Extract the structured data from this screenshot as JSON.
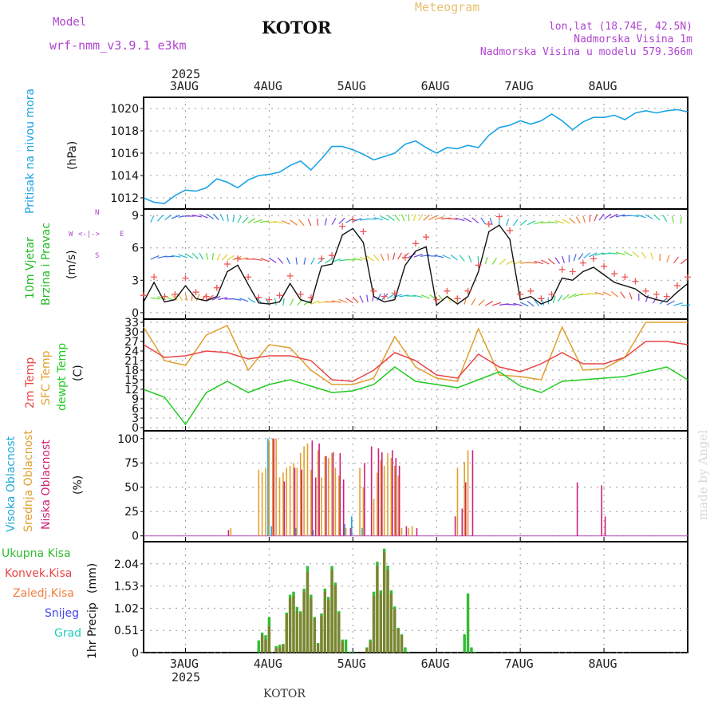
{
  "header": {
    "model_label": "Model",
    "model_name": "wrf-nmm_v3.9.1 e3km",
    "title": "KOTOR",
    "product": "Meteogram",
    "coords": "lon,lat (18.74E, 42.5N)",
    "elevation": "Nadmorska Visina 1m",
    "model_elevation": "Nadmorska Visina u modelu 579.366m",
    "watermark": "made by Angel",
    "footer": "KOTOR"
  },
  "colors": {
    "pressure": "#1aa3e6",
    "wind_label": "#22bb22",
    "wind_axis": "#b044d0",
    "temp2m": "#e84545",
    "sfc": "#e0a030",
    "dewpt": "#22cc22",
    "cloud_high": "#22aadd",
    "cloud_mid": "#e0a030",
    "cloud_low": "#d0207a",
    "precip_total": "#33bb33",
    "precip_conv": "#e84545",
    "precip_frozen": "#f08040",
    "snow": "#4444ee",
    "graupel": "#22ccbb",
    "model": "#b044d0",
    "product": "#e8c070"
  },
  "chart_data": {
    "type": "meteogram",
    "x_dates_top": [
      "3AUG",
      "4AUG",
      "5AUG",
      "6AUG",
      "7AUG",
      "8AUG"
    ],
    "x_dates_bottom": [
      "3AUG",
      "4AUG",
      "5AUG",
      "6AUG",
      "7AUG",
      "8AUG"
    ],
    "year_top": "2025",
    "year_bottom": "2025",
    "x_domain_hours": [
      -12,
      144
    ],
    "panels": [
      {
        "id": "pressure",
        "ylabel": "Pritisak na nivou mora",
        "unit": "(hPa)",
        "ylim": [
          1011,
          1021
        ],
        "yticks": [
          "1012",
          "1014",
          "1016",
          "1018",
          "1020"
        ],
        "series": [
          {
            "name": "MSLP",
            "x": [
              -12,
              -9,
              -6,
              -3,
              0,
              3,
              6,
              9,
              12,
              15,
              18,
              21,
              24,
              27,
              30,
              33,
              36,
              39,
              42,
              45,
              48,
              51,
              54,
              57,
              60,
              63,
              66,
              69,
              72,
              75,
              78,
              81,
              84,
              87,
              90,
              93,
              96,
              99,
              102,
              105,
              108,
              111,
              114,
              117,
              120,
              123,
              126,
              129,
              132,
              135,
              138,
              141,
              144
            ],
            "values": [
              1012.0,
              1011.6,
              1011.5,
              1012.2,
              1012.7,
              1012.6,
              1012.9,
              1013.7,
              1013.4,
              1012.9,
              1013.6,
              1014.0,
              1014.1,
              1014.3,
              1014.9,
              1015.3,
              1014.5,
              1015.5,
              1016.6,
              1016.6,
              1016.3,
              1015.9,
              1015.4,
              1015.7,
              1016.0,
              1016.8,
              1017.1,
              1016.5,
              1016.0,
              1016.5,
              1016.4,
              1016.7,
              1016.5,
              1017.6,
              1018.3,
              1018.5,
              1018.9,
              1018.6,
              1018.9,
              1019.5,
              1018.9,
              1018.1,
              1018.8,
              1019.2,
              1019.2,
              1019.4,
              1019.0,
              1019.6,
              1019.8,
              1019.6,
              1019.8,
              1019.9,
              1019.7
            ]
          }
        ]
      },
      {
        "id": "wind",
        "ylabel_1": "10m Vjetar",
        "ylabel_2": "Brzina i Pravac",
        "unit": "(m/s)",
        "compass": [
          "N",
          "S",
          "W",
          "E"
        ],
        "ylim": [
          -0.6,
          9.6
        ],
        "yticks": [
          "0",
          "3",
          "6",
          "9"
        ],
        "series": [
          {
            "name": "speed",
            "x": [
              -12,
              -9,
              -6,
              -3,
              0,
              3,
              6,
              9,
              12,
              15,
              18,
              21,
              24,
              27,
              30,
              33,
              36,
              39,
              42,
              45,
              48,
              51,
              54,
              57,
              60,
              63,
              66,
              69,
              72,
              75,
              78,
              81,
              84,
              87,
              90,
              93,
              96,
              99,
              102,
              105,
              108,
              111,
              114,
              117,
              120,
              123,
              126,
              129,
              132,
              135,
              138,
              141,
              144
            ],
            "values": [
              1.0,
              2.8,
              1.0,
              1.2,
              2.5,
              1.3,
              1.1,
              1.5,
              3.8,
              4.4,
              2.6,
              0.9,
              0.8,
              1.0,
              2.7,
              1.2,
              0.9,
              4.3,
              4.5,
              7.2,
              7.8,
              6.5,
              1.5,
              1.0,
              1.2,
              4.4,
              5.7,
              6.1,
              0.7,
              1.5,
              0.8,
              1.5,
              3.8,
              7.5,
              8.1,
              6.8,
              1.2,
              1.5,
              0.8,
              1.2,
              3.2,
              3.0,
              3.8,
              4.2,
              3.5,
              2.8,
              2.5,
              2.2,
              1.5,
              1.2,
              1.0,
              1.9,
              2.7
            ]
          },
          {
            "name": "gust",
            "x": [
              -12,
              -9,
              -6,
              -3,
              0,
              3,
              6,
              9,
              12,
              15,
              18,
              21,
              24,
              27,
              30,
              33,
              36,
              39,
              42,
              45,
              48,
              51,
              54,
              57,
              60,
              63,
              66,
              69,
              72,
              75,
              78,
              81,
              84,
              87,
              90,
              93,
              96,
              99,
              102,
              105,
              108,
              111,
              114,
              117,
              120,
              123,
              126,
              129,
              132,
              135,
              138,
              141,
              144
            ],
            "values": [
              1.6,
              3.3,
              1.5,
              1.7,
              3.2,
              1.9,
              1.5,
              2.3,
              4.5,
              5.0,
              3.3,
              1.4,
              1.2,
              1.6,
              3.4,
              1.7,
              1.4,
              5.0,
              5.3,
              8.0,
              8.6,
              7.5,
              2.0,
              1.5,
              1.8,
              5.1,
              6.4,
              7.0,
              1.2,
              2.0,
              1.3,
              2.0,
              4.4,
              8.2,
              8.9,
              7.6,
              1.7,
              2.0,
              1.3,
              1.7,
              4.0,
              3.8,
              4.6,
              5.0,
              4.3,
              3.6,
              3.3,
              2.9,
              2.0,
              1.7,
              1.5,
              2.5,
              3.3
            ]
          }
        ]
      },
      {
        "id": "temperature",
        "ylabel_1": "2m Temp",
        "ylabel_2": "SFC Temp",
        "ylabel_3": "dewpt Temp",
        "unit": "(C)",
        "ylim": [
          -1,
          34
        ],
        "yticks": [
          "0",
          "3",
          "6",
          "9",
          "12",
          "15",
          "18",
          "21",
          "24",
          "27",
          "30",
          "33"
        ],
        "series": [
          {
            "name": "2m Temp",
            "x": [
              -12,
              -6,
              0,
              6,
              12,
              18,
              24,
              30,
              36,
              42,
              48,
              54,
              60,
              66,
              72,
              78,
              84,
              90,
              96,
              102,
              108,
              114,
              120,
              126,
              132,
              138,
              144
            ],
            "values": [
              26.0,
              22.0,
              22.5,
              24.0,
              23.5,
              21.5,
              22.5,
              22.5,
              21.0,
              15.0,
              14.5,
              18.0,
              23.5,
              21.0,
              16.5,
              15.5,
              23.0,
              19.0,
              17.5,
              20.0,
              23.5,
              20.0,
              20.0,
              22.0,
              27.0,
              27.0,
              26.0
            ]
          },
          {
            "name": "SFC Temp",
            "x": [
              -12,
              -6,
              0,
              6,
              12,
              18,
              24,
              30,
              36,
              42,
              48,
              54,
              60,
              66,
              72,
              78,
              84,
              90,
              96,
              102,
              108,
              114,
              120,
              126,
              132,
              138,
              144
            ],
            "values": [
              31.5,
              21.0,
              19.5,
              29.0,
              32.0,
              18.0,
              26.0,
              25.0,
              18.0,
              13.5,
              13.5,
              15.5,
              28.5,
              19.0,
              15.5,
              14.5,
              31.0,
              16.5,
              16.0,
              15.0,
              31.5,
              18.0,
              18.5,
              22.0,
              33.0,
              33.0,
              33.0
            ]
          },
          {
            "name": "dewpt",
            "x": [
              -12,
              -6,
              0,
              6,
              12,
              18,
              24,
              30,
              36,
              42,
              48,
              54,
              60,
              66,
              72,
              78,
              84,
              90,
              96,
              102,
              108,
              114,
              120,
              126,
              132,
              138,
              144
            ],
            "values": [
              12.0,
              9.5,
              1.0,
              11.0,
              14.5,
              11.0,
              13.5,
              15.0,
              13.0,
              11.0,
              11.5,
              13.5,
              19.0,
              14.5,
              13.5,
              12.5,
              15.0,
              17.5,
              13.0,
              11.0,
              14.5,
              15.0,
              15.5,
              16.0,
              17.5,
              19.0,
              15.0
            ]
          }
        ]
      },
      {
        "id": "clouds",
        "ylabel_1": "Visoka Oblacnost",
        "ylabel_2": "Srednja Oblacnost",
        "ylabel_3": "Niska Oblacnost",
        "unit": "(%)",
        "ylim": [
          -6,
          108
        ],
        "yticks": [
          "0",
          "25",
          "50",
          "75",
          "100"
        ],
        "series": [
          {
            "name": "high",
            "x": [
              24,
              25,
              32,
              37,
              46,
              48,
              51
            ],
            "values": [
              100,
              10,
              8,
              6,
              12,
              20,
              8
            ]
          },
          {
            "name": "mid",
            "x": [
              13,
              21,
              22,
              23,
              24,
              25,
              26,
              27,
              28,
              29,
              30,
              31,
              32,
              33,
              34,
              35,
              36,
              38,
              39,
              40,
              41,
              42,
              43,
              44,
              46,
              50,
              51,
              54,
              55,
              56,
              57,
              58,
              59,
              60,
              61,
              62,
              64,
              65,
              78,
              80,
              81
            ],
            "values": [
              8,
              68,
              65,
              70,
              98,
              100,
              100,
              60,
              65,
              70,
              72,
              75,
              70,
              85,
              92,
              95,
              68,
              88,
              60,
              82,
              80,
              85,
              70,
              62,
              8,
              70,
              50,
              38,
              65,
              78,
              72,
              85,
              80,
              72,
              62,
              8,
              8,
              10,
              70,
              76,
              88
            ]
          },
          {
            "name": "low",
            "x": [
              12,
              25,
              28,
              31,
              33,
              36,
              37,
              38,
              40,
              42,
              44,
              45,
              47,
              51,
              53,
              55,
              56,
              59,
              60,
              61,
              63,
              66,
              77,
              79,
              80,
              82,
              112,
              119,
              120
            ],
            "values": [
              6,
              100,
              56,
              70,
              68,
              98,
              60,
              95,
              82,
              86,
              85,
              58,
              8,
              75,
              92,
              90,
              86,
              88,
              80,
              72,
              10,
              8,
              20,
              28,
              55,
              88,
              55,
              52,
              20
            ]
          }
        ]
      },
      {
        "id": "precip",
        "ylabel_1": "1hr Precip",
        "unit": "(mm)",
        "legend": [
          "Ukupna Kisa",
          "Konvek.Kisa",
          "Zaledj.Kisa",
          "Snijeg",
          "Grad"
        ],
        "ylim": [
          0,
          2.55
        ],
        "yticks": [
          "0",
          "0.51",
          "1.02",
          "1.53",
          "2.04"
        ],
        "series": [
          {
            "name": "total",
            "x": [
              21,
              22,
              23,
              24,
              26,
              27,
              28,
              29,
              30,
              31,
              32,
              33,
              34,
              35,
              36,
              37,
              38,
              39,
              40,
              41,
              42,
              43,
              44,
              45,
              46,
              47,
              48,
              52,
              53,
              54,
              55,
              56,
              57,
              58,
              59,
              60,
              61,
              62,
              63,
              64,
              80,
              81,
              82,
              83
            ],
            "values": [
              0.28,
              0.46,
              0.4,
              0.82,
              0.15,
              0.18,
              0.2,
              0.92,
              1.33,
              1.4,
              1.05,
              0.95,
              1.47,
              1.99,
              1.33,
              0.82,
              0.22,
              0.9,
              1.47,
              1.28,
              1.99,
              1.61,
              0.95,
              0.3,
              0.3,
              0.02,
              0.02,
              0.12,
              0.3,
              1.4,
              2.09,
              1.43,
              2.39,
              2.0,
              1.43,
              1.06,
              0.57,
              0.42,
              0.12,
              0.02,
              0.42,
              1.36,
              0.12,
              0.02
            ]
          },
          {
            "name": "convective",
            "x": [
              21,
              22,
              23,
              24,
              26,
              27,
              28,
              29,
              30,
              31,
              32,
              33,
              34,
              35,
              36,
              37,
              38,
              39,
              40,
              41,
              42,
              43,
              44,
              45,
              52,
              53,
              54,
              55,
              56,
              57,
              58,
              59,
              60,
              61,
              62,
              80,
              81
            ],
            "values": [
              0.0,
              0.4,
              0.3,
              0.6,
              0.1,
              0.12,
              0.18,
              0.88,
              1.25,
              1.3,
              0.95,
              0.9,
              1.4,
              1.85,
              1.25,
              0.78,
              0.2,
              0.85,
              1.4,
              1.2,
              1.9,
              1.55,
              0.9,
              0.25,
              0.1,
              0.25,
              1.3,
              2.0,
              1.35,
              2.3,
              1.9,
              1.35,
              1.0,
              0.55,
              0.4,
              0.0,
              0.0
            ]
          }
        ]
      }
    ]
  }
}
